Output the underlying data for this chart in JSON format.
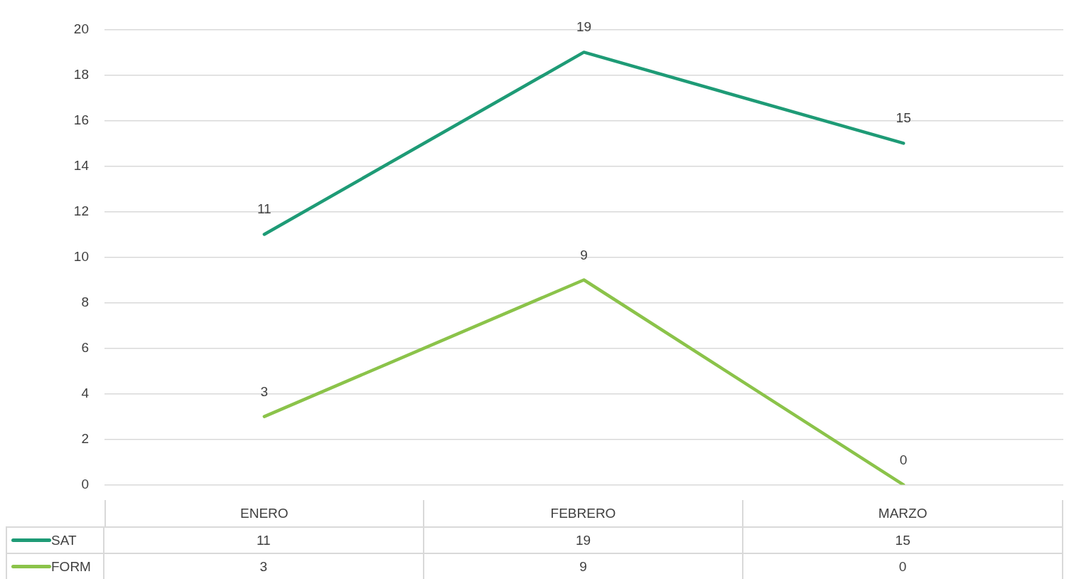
{
  "chart_data": {
    "type": "line",
    "categories": [
      "ENERO",
      "FEBRERO",
      "MARZO"
    ],
    "series": [
      {
        "name": "SAT",
        "color": "#1e9b76",
        "values": [
          11,
          19,
          15
        ]
      },
      {
        "name": "FORM",
        "color": "#8bc34a",
        "values": [
          3,
          9,
          0
        ]
      }
    ],
    "annotations": [
      {
        "text": "11",
        "x": "ENERO",
        "y": 11
      },
      {
        "text": "19",
        "x": "FEBRERO",
        "y": 19
      },
      {
        "text": "15",
        "x": "MARZO",
        "y": 15
      },
      {
        "text": "3",
        "x": "ENERO",
        "y": 3
      },
      {
        "text": "9",
        "x": "FEBRERO",
        "y": 9
      },
      {
        "text": "0",
        "x": "MARZO",
        "y": 0
      }
    ],
    "ylim": [
      0,
      20
    ],
    "yticks": [
      0,
      2,
      4,
      6,
      8,
      10,
      12,
      14,
      16,
      18,
      20
    ],
    "grid": "y",
    "legend": "bottom",
    "data_labels": true,
    "marker": "none",
    "line_style": "solid"
  }
}
